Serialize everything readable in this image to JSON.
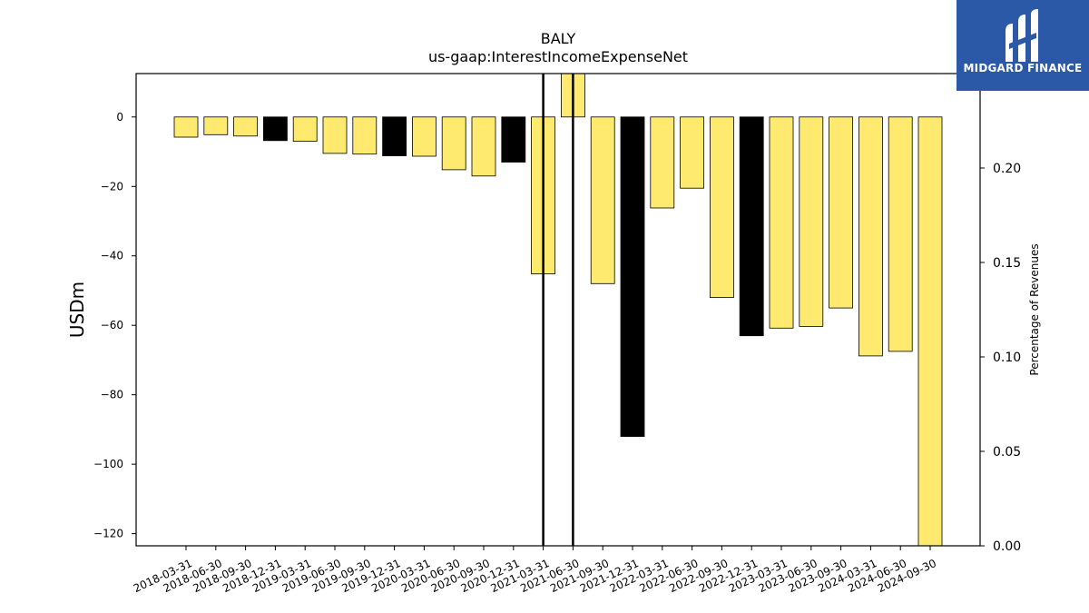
{
  "chart_data": {
    "type": "bar",
    "title": "BALY",
    "subtitle": "us-gaap:InterestIncomeExpenseNet",
    "ylabel": "USDm",
    "y2label": "Percentage of Revenues",
    "ylim": [
      -123.5,
      12.5
    ],
    "y2lim": [
      0.0,
      0.25
    ],
    "yticks": [
      0,
      -20,
      -40,
      -60,
      -80,
      -100,
      -120
    ],
    "y2ticks": [
      0.0,
      0.05,
      0.1,
      0.15,
      0.2
    ],
    "categories": [
      "2018-03-31",
      "2018-06-30",
      "2018-09-30",
      "2018-12-31",
      "2019-03-31",
      "2019-06-30",
      "2019-09-30",
      "2019-12-31",
      "2020-03-31",
      "2020-06-30",
      "2020-09-30",
      "2020-12-31",
      "2021-03-31",
      "2021-06-30",
      "2021-09-30",
      "2021-12-31",
      "2022-03-31",
      "2022-06-30",
      "2022-09-30",
      "2022-12-31",
      "2023-03-31",
      "2023-06-30",
      "2023-09-30",
      "2024-03-31",
      "2024-06-30",
      "2024-09-30"
    ],
    "values": [
      -5.8,
      -5.1,
      -5.5,
      -6.8,
      -7.0,
      -10.5,
      -10.7,
      -11.2,
      -11.3,
      -15.2,
      -17.0,
      -13.0,
      -45.2,
      12.5,
      -48.0,
      -92.0,
      -26.2,
      -20.5,
      -52.0,
      -63.0,
      -60.8,
      -60.3,
      -55.0,
      -68.8,
      -67.5,
      -123.5
    ],
    "highlight": [
      false,
      false,
      false,
      true,
      false,
      false,
      false,
      true,
      false,
      false,
      false,
      true,
      false,
      false,
      false,
      true,
      false,
      false,
      false,
      true,
      false,
      false,
      false,
      false,
      false,
      false
    ],
    "vlines": [
      "2021-03-31",
      "2021-06-30"
    ],
    "colors": {
      "normal": "#fdea6f",
      "highlight": "#000000",
      "edge": "#000000"
    }
  },
  "logo": {
    "text": "MIDGARD FINANCE",
    "icon": "midgard-logo-icon",
    "background": "#2b59a8"
  }
}
